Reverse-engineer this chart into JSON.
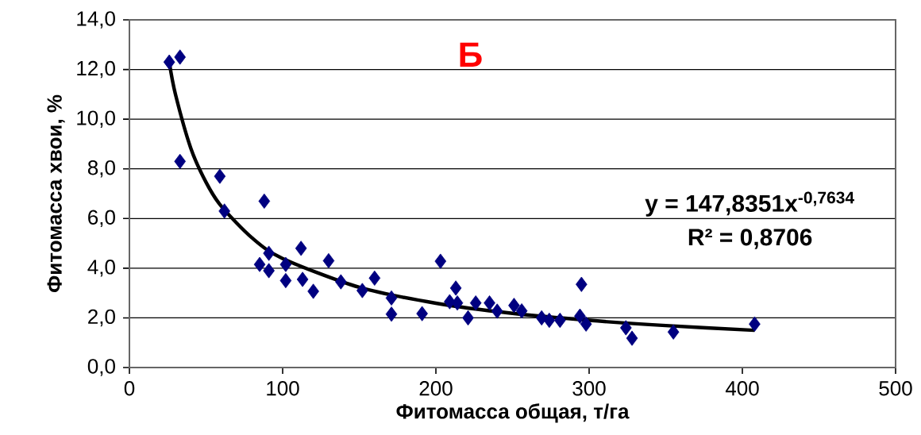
{
  "chart_data": {
    "type": "scatter",
    "xlabel": "Фитомасса общая, т/га",
    "ylabel": "Фитомасса хвои, %",
    "annotations": [
      "Б",
      "y = 147,8351x$^{-0,7634}$",
      "R² = 0,8706"
    ],
    "xlim": [
      0,
      500
    ],
    "ylim": [
      0,
      14
    ],
    "xticks": [
      0,
      100,
      200,
      300,
      400,
      500
    ],
    "yticks": [
      {
        "value": 0,
        "label": "0,0"
      },
      {
        "value": 2,
        "label": "2,0"
      },
      {
        "value": 4,
        "label": "4,0"
      },
      {
        "value": 6,
        "label": "6,0"
      },
      {
        "value": 8,
        "label": "8,0"
      },
      {
        "value": 10,
        "label": "10,0"
      },
      {
        "value": 12,
        "label": "12,0"
      },
      {
        "value": 14,
        "label": "14,0"
      }
    ],
    "grid": "y",
    "series": [
      {
        "color": "#000080",
        "marker": "diamond",
        "x": [
          26,
          33,
          33,
          59,
          62,
          88,
          91,
          85,
          91,
          102,
          102,
          112,
          113,
          120,
          130,
          137,
          138,
          152,
          160,
          171,
          171,
          191,
          203,
          213,
          209,
          214,
          221,
          226,
          235,
          240,
          251,
          256,
          269,
          274,
          281,
          295,
          294,
          298,
          324,
          328,
          355,
          408
        ],
        "values": [
          12.3,
          12.5,
          8.3,
          7.7,
          6.3,
          6.7,
          4.6,
          4.15,
          3.9,
          4.15,
          3.5,
          4.8,
          3.55,
          3.07,
          4.3,
          null,
          3.45,
          3.1,
          3.6,
          2.8,
          2.15,
          2.17,
          4.28,
          3.2,
          2.65,
          2.6,
          2.0,
          2.6,
          2.6,
          2.27,
          2.5,
          2.28,
          2.0,
          1.9,
          1.9,
          3.35,
          2.07,
          1.75,
          1.6,
          1.18,
          1.43,
          1.75
        ]
      },
      {
        "type": "line",
        "color": "#000000",
        "marker": "none",
        "line_style": "solid",
        "x": [
          26,
          30,
          40,
          50,
          60,
          80,
          100,
          150,
          200,
          250,
          300,
          350,
          408
        ],
        "values": [
          12.3,
          11.01,
          8.84,
          7.46,
          6.49,
          5.22,
          4.39,
          3.23,
          2.59,
          2.18,
          1.9,
          1.69,
          1.5
        ]
      }
    ]
  }
}
